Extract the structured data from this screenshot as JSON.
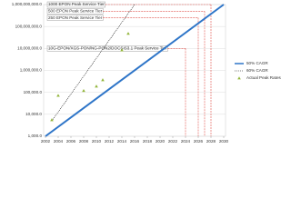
{
  "chart_data": {
    "type": "line",
    "log_y": true,
    "grid": true,
    "xlim": [
      2002,
      2030
    ],
    "xticks": [
      2002,
      2004,
      2006,
      2008,
      2010,
      2012,
      2014,
      2016,
      2018,
      2020,
      2022,
      2024,
      2026,
      2028,
      2030
    ],
    "ylim": [
      1000,
      1000000000
    ],
    "yticks": [
      {
        "value": 1000,
        "label": "1,000.0"
      },
      {
        "value": 10000,
        "label": "10,000.0"
      },
      {
        "value": 100000,
        "label": "100,000.0"
      },
      {
        "value": 1000000,
        "label": "1,000,000.0"
      },
      {
        "value": 10000000,
        "label": "10,000,000.0"
      },
      {
        "value": 100000000,
        "label": "100,000,000.0"
      },
      {
        "value": 1000000000,
        "label": "1,000,000,000.0"
      }
    ],
    "series": [
      {
        "name": "50% CAGR",
        "color": "#2e75c8",
        "style": "solid",
        "x": [
          2002,
          2030
        ],
        "values": [
          1000,
          1000000000
        ]
      },
      {
        "name": "60% CAGR",
        "color": "#000000",
        "style": "dotted",
        "x": [
          2003,
          2016
        ],
        "values": [
          5000,
          1000000000
        ]
      },
      {
        "name": "Actual Peak Rates",
        "color": "#92b53a",
        "style": "markers",
        "x": [
          2003,
          2004,
          2008,
          2010,
          2011,
          2014,
          2015
        ],
        "values": [
          5600,
          72000,
          120000,
          190000,
          370000,
          8500000,
          48000000
        ]
      }
    ],
    "tiers": [
      {
        "label": "1000 EPON Peak Service Tier",
        "value": 1000000000,
        "year": 2028
      },
      {
        "label": "500 EPON Peak Service Tier",
        "value": 500000000,
        "year": 2027
      },
      {
        "label": "250 EPON Peak Service Tier",
        "value": 250000000,
        "year": 2026
      },
      {
        "label": "10G-EPON/XGS-PON/NG-PON2/DOCSIS3.1 Peak Service Tier",
        "value": 10000000,
        "year": 2024
      }
    ],
    "tier_color": "#e0504a",
    "legend": "right"
  }
}
